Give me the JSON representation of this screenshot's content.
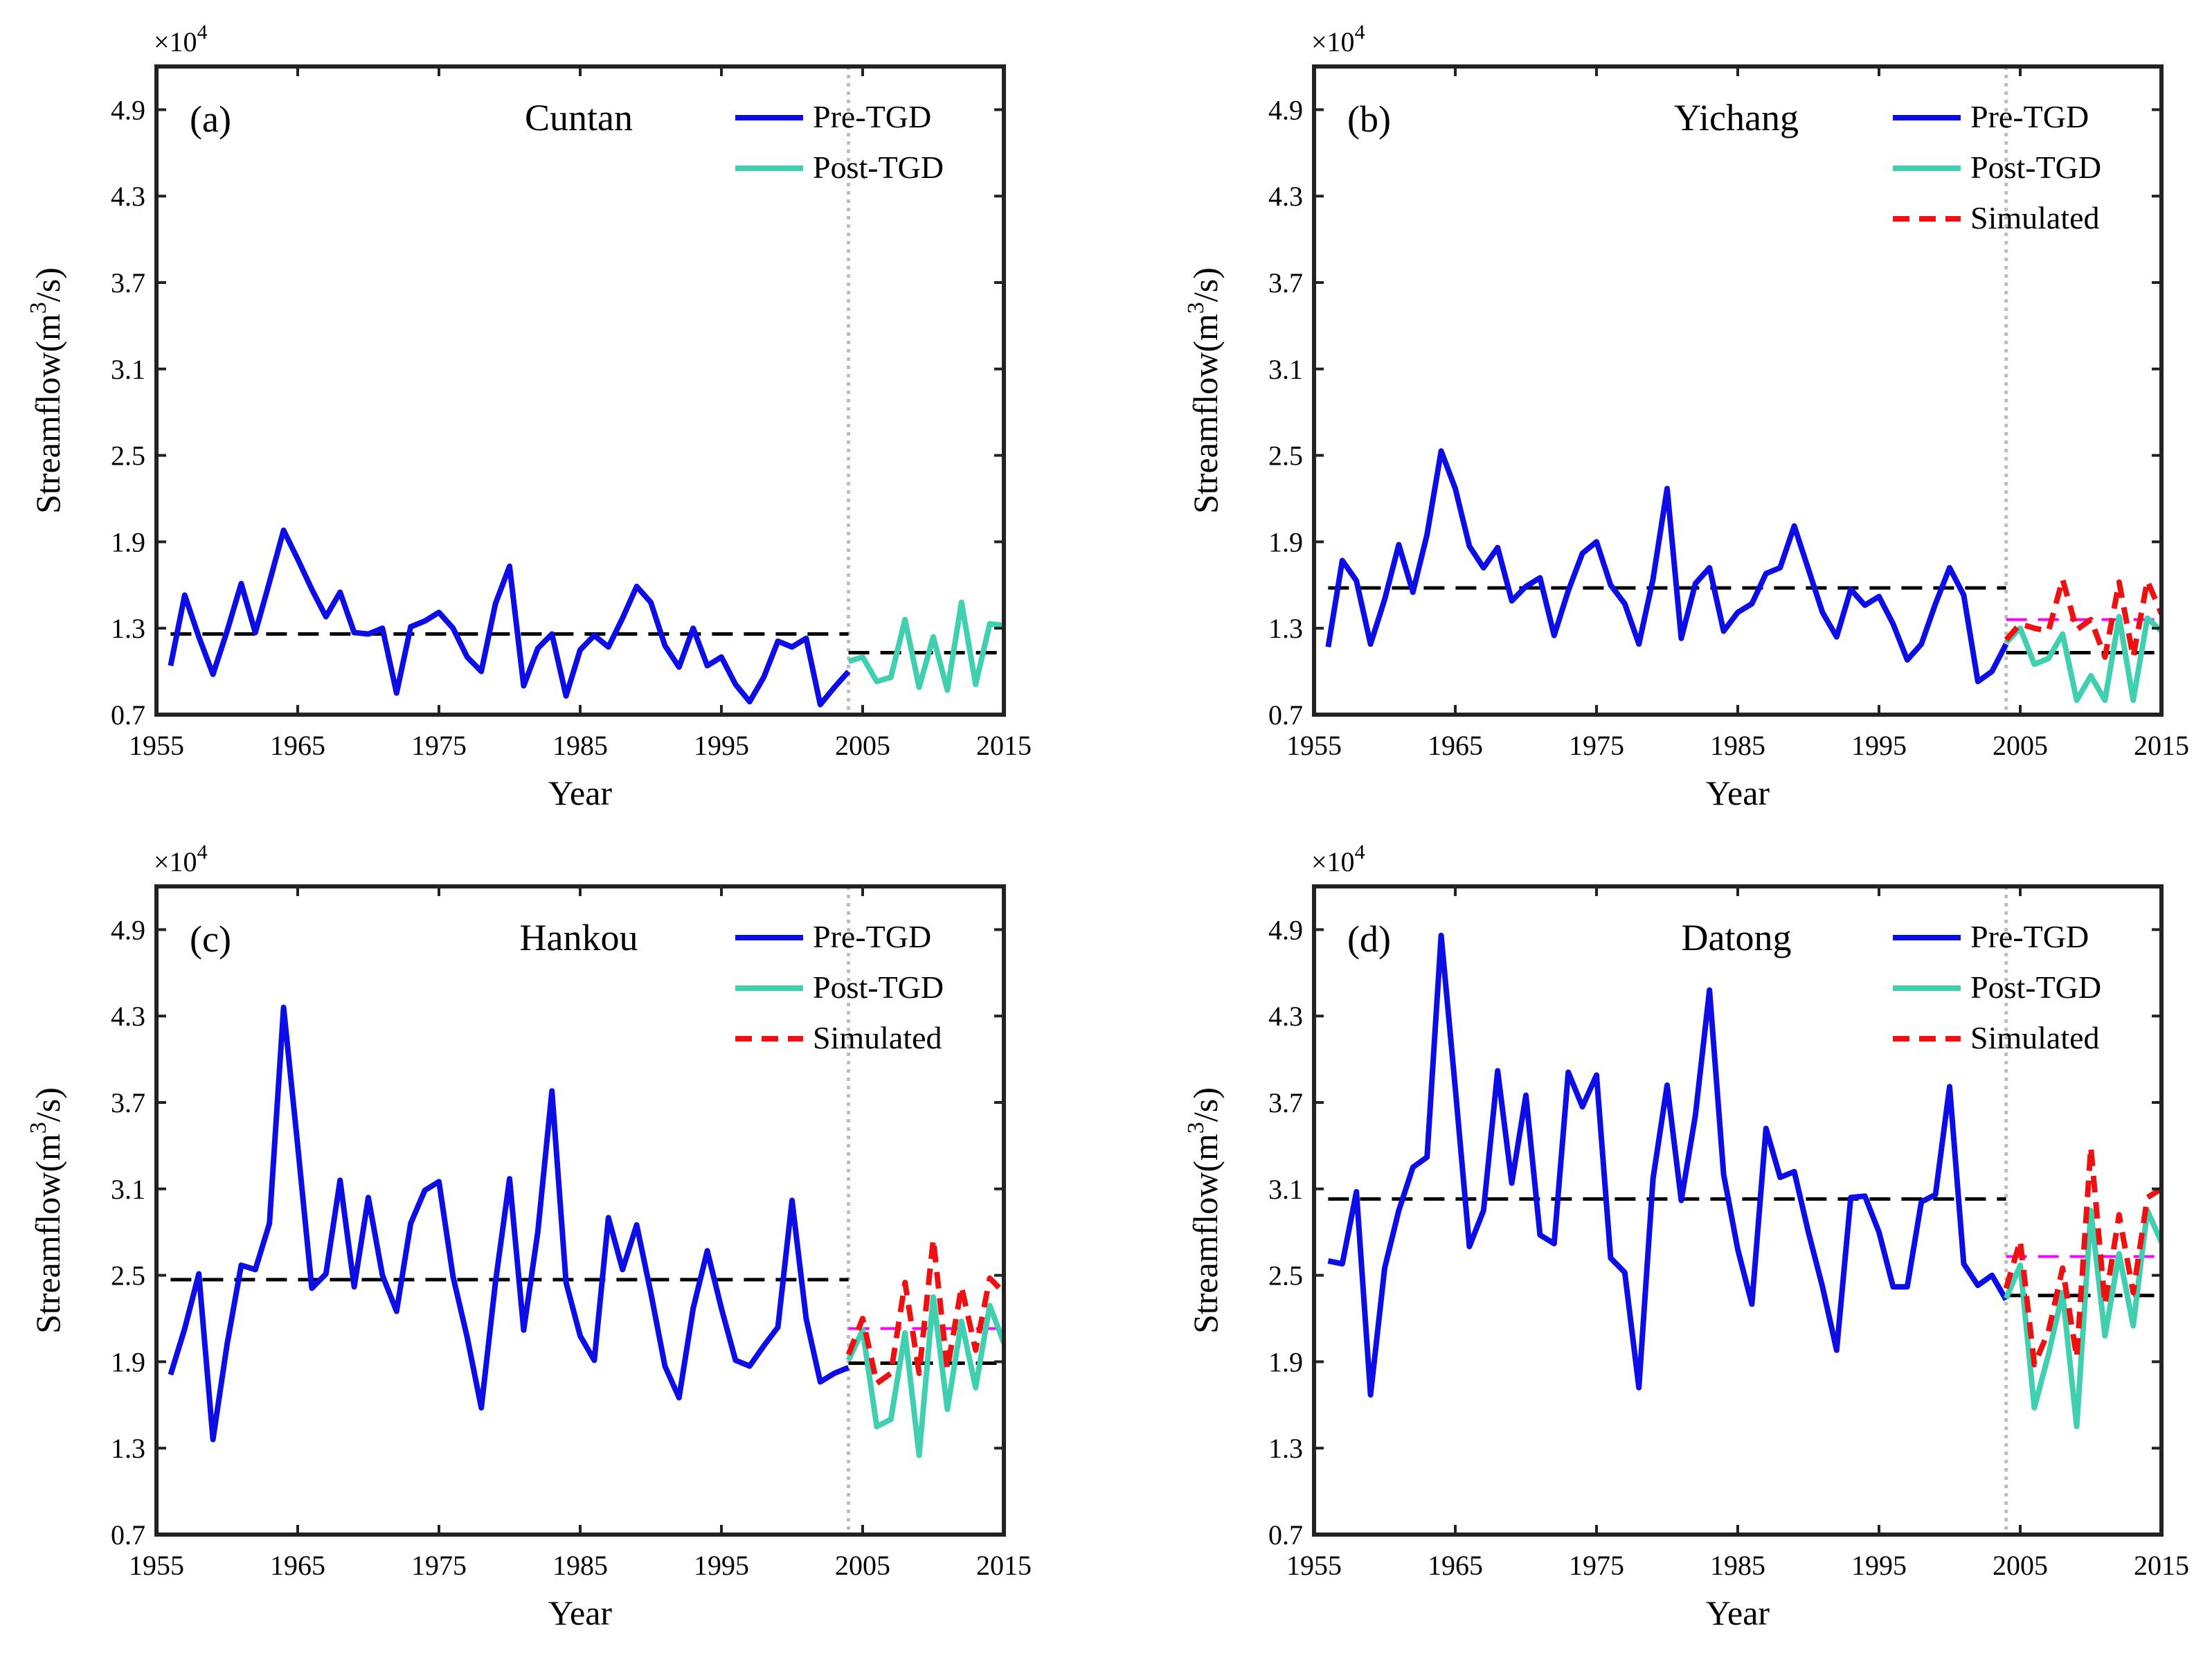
{
  "chart_data": [
    {
      "type": "line",
      "panel_label": "(a)",
      "station": "Cuntan",
      "xlabel": "Year",
      "ylabel": "Streamflow(m3/s)",
      "ylabel_base": "Streamflow(m",
      "ylabel_sup": "3",
      "ylabel_tail": "/s)",
      "y_multiplier": "×10",
      "y_multiplier_exp": "4",
      "xlim": [
        1955,
        2015
      ],
      "ylim": [
        0.7,
        5.2
      ],
      "xticks": [
        1955,
        1965,
        1975,
        1985,
        1995,
        2005,
        2015
      ],
      "yticks": [
        "0.7",
        "1.3",
        "1.9",
        "2.5",
        "3.1",
        "3.7",
        "4.3",
        "4.9"
      ],
      "divider_x": 2004,
      "legend": [
        "Pre-TGD",
        "Post-TGD"
      ],
      "series": [
        {
          "name": "Pre-TGD",
          "color": "#0d0de6",
          "style": "solid",
          "x_start": 1956,
          "values": [
            1.04,
            1.53,
            1.24,
            0.98,
            1.28,
            1.61,
            1.27,
            1.62,
            1.98,
            1.78,
            1.57,
            1.38,
            1.55,
            1.27,
            1.26,
            1.3,
            0.85,
            1.31,
            1.35,
            1.41,
            1.3,
            1.1,
            1.0,
            1.47,
            1.73,
            0.9,
            1.16,
            1.26,
            0.83,
            1.15,
            1.25,
            1.17,
            1.37,
            1.59,
            1.48,
            1.18,
            1.03,
            1.3,
            1.04,
            1.1,
            0.91,
            0.79,
            0.96,
            1.21,
            1.17,
            1.23,
            0.77,
            0.89,
            1.0
          ]
        },
        {
          "name": "Post-TGD",
          "color": "#40d0b0",
          "style": "solid",
          "x_start": 2004,
          "values": [
            1.07,
            1.1,
            0.93,
            0.96,
            1.36,
            0.89,
            1.24,
            0.87,
            1.48,
            0.91,
            1.33,
            1.32
          ]
        }
      ],
      "mean_lines": [
        {
          "name": "Pre-TGD mean",
          "color": "#000000",
          "style": "dashed",
          "x": [
            1956,
            2004
          ],
          "y": 1.26
        },
        {
          "name": "Post-TGD mean",
          "color": "#000000",
          "style": "dashed",
          "x": [
            2004,
            2015
          ],
          "y": 1.13
        }
      ]
    },
    {
      "type": "line",
      "panel_label": "(b)",
      "station": "Yichang",
      "xlabel": "Year",
      "ylabel": "Streamflow(m3/s)",
      "ylabel_base": "Streamflow(m",
      "ylabel_sup": "3",
      "ylabel_tail": "/s)",
      "y_multiplier": "×10",
      "y_multiplier_exp": "4",
      "xlim": [
        1955,
        2015
      ],
      "ylim": [
        0.7,
        5.2
      ],
      "xticks": [
        1955,
        1965,
        1975,
        1985,
        1995,
        2005,
        2015
      ],
      "yticks": [
        "0.7",
        "1.3",
        "1.9",
        "2.5",
        "3.1",
        "3.7",
        "4.3",
        "4.9"
      ],
      "divider_x": 2004,
      "legend": [
        "Pre-TGD",
        "Post-TGD",
        "Simulated"
      ],
      "series": [
        {
          "name": "Pre-TGD",
          "color": "#0d0de6",
          "style": "solid",
          "x_start": 1956,
          "values": [
            1.17,
            1.77,
            1.63,
            1.19,
            1.5,
            1.88,
            1.55,
            1.95,
            2.53,
            2.27,
            1.87,
            1.72,
            1.86,
            1.49,
            1.59,
            1.65,
            1.25,
            1.56,
            1.82,
            1.9,
            1.6,
            1.47,
            1.19,
            1.64,
            2.27,
            1.23,
            1.61,
            1.72,
            1.28,
            1.41,
            1.47,
            1.68,
            1.72,
            2.01,
            1.71,
            1.41,
            1.24,
            1.57,
            1.46,
            1.52,
            1.33,
            1.08,
            1.19,
            1.47,
            1.72,
            1.53,
            0.93,
            1.0,
            1.19
          ]
        },
        {
          "name": "Post-TGD",
          "color": "#40d0b0",
          "style": "solid",
          "x_start": 2004,
          "values": [
            1.2,
            1.3,
            1.05,
            1.09,
            1.26,
            0.8,
            0.97,
            0.8,
            1.38,
            0.8,
            1.37,
            1.28
          ]
        },
        {
          "name": "Simulated",
          "color": "#ee1111",
          "style": "dashed",
          "x_start": 2004,
          "values": [
            1.22,
            1.33,
            1.3,
            1.28,
            1.64,
            1.29,
            1.36,
            1.1,
            1.62,
            1.1,
            1.63,
            1.4
          ]
        }
      ],
      "mean_lines": [
        {
          "name": "Pre-TGD mean",
          "color": "#000000",
          "style": "dashed",
          "x": [
            1956,
            2004
          ],
          "y": 1.58
        },
        {
          "name": "Post-TGD mean",
          "color": "#000000",
          "style": "dashed",
          "x": [
            2004,
            2015
          ],
          "y": 1.13
        },
        {
          "name": "Simulated mean",
          "color": "#ff00ff",
          "style": "dashed",
          "x": [
            2004,
            2015
          ],
          "y": 1.36
        }
      ]
    },
    {
      "type": "line",
      "panel_label": "(c)",
      "station": "Hankou",
      "xlabel": "Year",
      "ylabel": "Streamflow(m3/s)",
      "ylabel_base": "Streamflow(m",
      "ylabel_sup": "3",
      "ylabel_tail": "/s)",
      "y_multiplier": "×10",
      "y_multiplier_exp": "4",
      "xlim": [
        1955,
        2015
      ],
      "ylim": [
        0.7,
        5.2
      ],
      "xticks": [
        1955,
        1965,
        1975,
        1985,
        1995,
        2005,
        2015
      ],
      "yticks": [
        "0.7",
        "1.3",
        "1.9",
        "2.5",
        "3.1",
        "3.7",
        "4.3",
        "4.9"
      ],
      "divider_x": 2004,
      "legend": [
        "Pre-TGD",
        "Post-TGD",
        "Simulated"
      ],
      "series": [
        {
          "name": "Pre-TGD",
          "color": "#0d0de6",
          "style": "solid",
          "x_start": 1956,
          "values": [
            1.81,
            2.13,
            2.51,
            1.36,
            2.02,
            2.57,
            2.54,
            2.86,
            4.36,
            3.4,
            2.41,
            2.51,
            3.16,
            2.42,
            3.04,
            2.5,
            2.25,
            2.86,
            3.09,
            3.15,
            2.49,
            2.07,
            1.58,
            2.45,
            3.17,
            2.12,
            2.8,
            3.78,
            2.45,
            2.08,
            1.91,
            2.9,
            2.54,
            2.85,
            2.38,
            1.87,
            1.65,
            2.27,
            2.67,
            2.27,
            1.91,
            1.87,
            2.01,
            2.14,
            3.02,
            2.2,
            1.76,
            1.82,
            1.86
          ]
        },
        {
          "name": "Post-TGD",
          "color": "#40d0b0",
          "style": "solid",
          "x_start": 2004,
          "values": [
            1.91,
            2.12,
            1.45,
            1.5,
            2.1,
            1.25,
            2.35,
            1.57,
            2.18,
            1.72,
            2.29,
            2.03
          ]
        },
        {
          "name": "Simulated",
          "color": "#ee1111",
          "style": "dashed",
          "x_start": 2004,
          "values": [
            1.95,
            2.2,
            1.75,
            1.82,
            2.45,
            1.82,
            2.75,
            1.85,
            2.42,
            1.98,
            2.48,
            2.38
          ]
        }
      ],
      "mean_lines": [
        {
          "name": "Pre-TGD mean",
          "color": "#000000",
          "style": "dashed",
          "x": [
            1956,
            2004
          ],
          "y": 2.47
        },
        {
          "name": "Post-TGD mean",
          "color": "#000000",
          "style": "dashed",
          "x": [
            2004,
            2015
          ],
          "y": 1.89
        },
        {
          "name": "Simulated mean",
          "color": "#ff00ff",
          "style": "dashed",
          "x": [
            2004,
            2015
          ],
          "y": 2.13
        }
      ]
    },
    {
      "type": "line",
      "panel_label": "(d)",
      "station": "Datong",
      "xlabel": "Year",
      "ylabel": "Streamflow(m3/s)",
      "ylabel_base": "Streamflow(m",
      "ylabel_sup": "3",
      "ylabel_tail": "/s)",
      "y_multiplier": "×10",
      "y_multiplier_exp": "4",
      "xlim": [
        1955,
        2015
      ],
      "ylim": [
        0.7,
        5.2
      ],
      "xticks": [
        1955,
        1965,
        1975,
        1985,
        1995,
        2005,
        2015
      ],
      "yticks": [
        "0.7",
        "1.3",
        "1.9",
        "2.5",
        "3.1",
        "3.7",
        "4.3",
        "4.9"
      ],
      "divider_x": 2004,
      "legend": [
        "Pre-TGD",
        "Post-TGD",
        "Simulated"
      ],
      "series": [
        {
          "name": "Pre-TGD",
          "color": "#0d0de6",
          "style": "solid",
          "x_start": 1956,
          "values": [
            2.6,
            2.58,
            3.08,
            1.67,
            2.55,
            2.95,
            3.25,
            3.32,
            4.86,
            3.8,
            2.7,
            2.95,
            3.92,
            3.14,
            3.75,
            2.78,
            2.72,
            3.91,
            3.67,
            3.89,
            2.62,
            2.52,
            1.72,
            3.17,
            3.82,
            3.02,
            3.61,
            4.48,
            3.2,
            2.68,
            2.3,
            3.52,
            3.18,
            3.22,
            2.8,
            2.42,
            1.98,
            3.04,
            3.05,
            2.8,
            2.42,
            2.42,
            3.01,
            3.06,
            3.81,
            2.58,
            2.43,
            2.5,
            2.33
          ]
        },
        {
          "name": "Post-TGD",
          "color": "#40d0b0",
          "style": "solid",
          "x_start": 2004,
          "values": [
            2.34,
            2.57,
            1.58,
            1.95,
            2.38,
            1.45,
            2.95,
            2.08,
            2.65,
            2.15,
            2.95,
            2.73
          ]
        },
        {
          "name": "Simulated",
          "color": "#ee1111",
          "style": "dashed",
          "x_start": 2004,
          "values": [
            2.41,
            2.74,
            1.88,
            2.11,
            2.55,
            1.93,
            3.39,
            2.3,
            2.92,
            2.38,
            3.04,
            3.1
          ]
        }
      ],
      "mean_lines": [
        {
          "name": "Pre-TGD mean",
          "color": "#000000",
          "style": "dashed",
          "x": [
            1956,
            2004
          ],
          "y": 3.03
        },
        {
          "name": "Post-TGD mean",
          "color": "#000000",
          "style": "dashed",
          "x": [
            2004,
            2015
          ],
          "y": 2.36
        },
        {
          "name": "Simulated mean",
          "color": "#ff00ff",
          "style": "dashed",
          "x": [
            2004,
            2015
          ],
          "y": 2.63
        }
      ]
    }
  ]
}
